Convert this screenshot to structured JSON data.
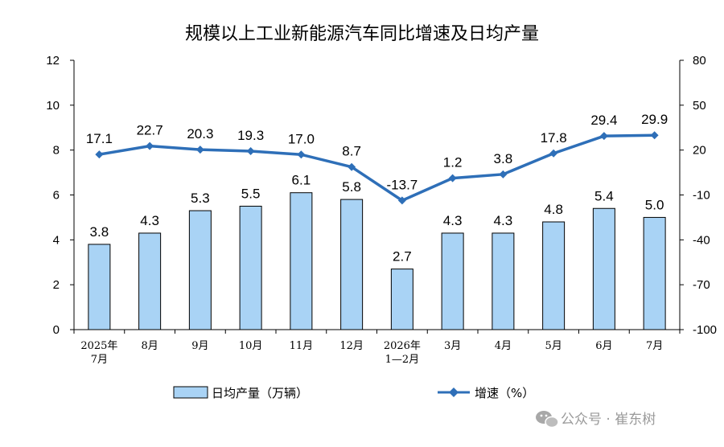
{
  "chart_data": {
    "type": "bar",
    "title": "规模以上工业新能源汽车同比增速及日均产量",
    "categories": [
      "2025年\n7月",
      "8月",
      "9月",
      "10月",
      "11月",
      "12月",
      "2026年\n1—2月",
      "3月",
      "4月",
      "5月",
      "6月",
      "7月"
    ],
    "series": [
      {
        "name": "日均产量（万辆）",
        "type": "bar",
        "axis": "left",
        "color": "#a9d3f5",
        "values": [
          3.8,
          4.3,
          5.3,
          5.5,
          6.1,
          5.8,
          2.7,
          4.3,
          4.3,
          4.8,
          5.4,
          5.0
        ]
      },
      {
        "name": "增速（%）",
        "type": "line",
        "axis": "right",
        "color": "#2e6fb8",
        "values": [
          17.1,
          22.7,
          20.3,
          19.3,
          17.0,
          8.7,
          -13.7,
          1.2,
          3.8,
          17.8,
          29.4,
          29.9
        ]
      }
    ],
    "ylim_left": [
      0,
      12
    ],
    "yticks_left": [
      0,
      2,
      4,
      6,
      8,
      10,
      12
    ],
    "ylim_right": [
      -100,
      80
    ],
    "yticks_right": [
      -100,
      -70,
      -40,
      -10,
      20,
      50,
      80
    ],
    "legend_position": "bottom",
    "grid": false
  },
  "watermark": {
    "text": "公众号 · 崔东树",
    "icon": "wechat-icon"
  }
}
